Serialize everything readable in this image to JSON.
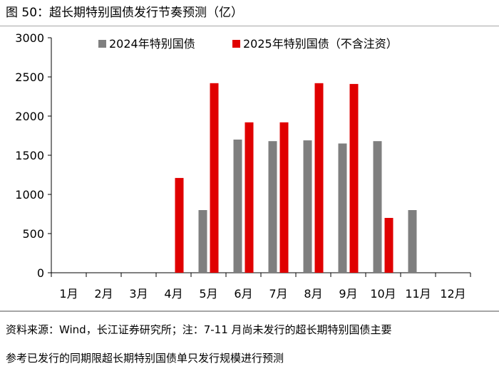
{
  "figure": {
    "title": "图 50：超长期特别国债发行节奏预测（亿）",
    "note_line1": "资料来源：Wind，长江证券研究所；注：7-11 月尚未发行的超长期特别国债主要",
    "note_line2": "参考已发行的同期限超长期特别国债单只发行规模进行预测"
  },
  "chart_data": {
    "type": "bar",
    "title": "图 50：超长期特别国债发行节奏预测（亿）",
    "xlabel": "",
    "ylabel": "",
    "categories": [
      "1月",
      "2月",
      "3月",
      "4月",
      "5月",
      "6月",
      "7月",
      "8月",
      "9月",
      "10月",
      "11月",
      "12月"
    ],
    "yticks": [
      0,
      500,
      1000,
      1500,
      2000,
      2500,
      3000
    ],
    "ylim": [
      0,
      3000
    ],
    "grid": false,
    "legend_position": "top",
    "series": [
      {
        "name": "2024年特别国债",
        "color": "#7f7f7f",
        "values": [
          0,
          0,
          0,
          0,
          800,
          1700,
          1680,
          1690,
          1650,
          1680,
          800,
          0
        ]
      },
      {
        "name": "2025年特别国债（不含注资）",
        "color": "#e00000",
        "values": [
          0,
          0,
          0,
          1210,
          2420,
          1920,
          1920,
          2420,
          2410,
          700,
          0,
          0
        ]
      }
    ]
  }
}
